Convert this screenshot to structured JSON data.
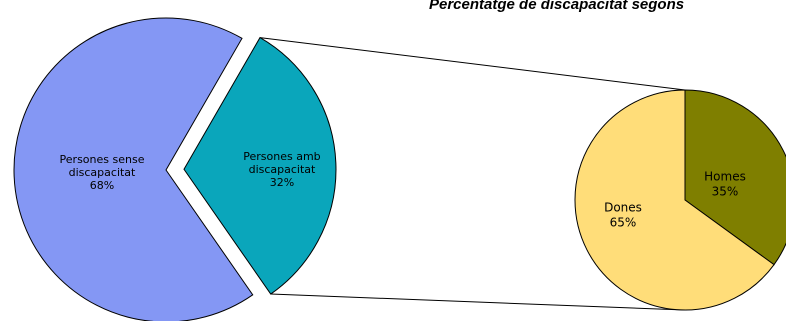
{
  "chart_data": [
    {
      "type": "pie",
      "title": "Percentatge de discapacitat segons",
      "slices": [
        {
          "label_lines": [
            "Persones sense",
            "discapacitat"
          ],
          "percent_label": "68%",
          "value": 68,
          "color": "#8497f4"
        },
        {
          "label_lines": [
            "Persones amb",
            "discapacitat"
          ],
          "percent_label": "32%",
          "value": 32,
          "color": "#0aa6bb",
          "exploded": true
        }
      ]
    },
    {
      "type": "pie",
      "title": "",
      "slices": [
        {
          "label_lines": [
            "Homes"
          ],
          "percent_label": "35%",
          "value": 35,
          "color": "#7f7f00"
        },
        {
          "label_lines": [
            "Dones"
          ],
          "percent_label": "65%",
          "value": 65,
          "color": "#ffdd79"
        }
      ]
    }
  ]
}
